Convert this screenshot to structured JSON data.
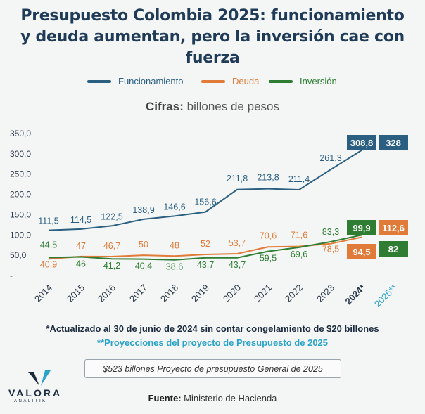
{
  "title_line1": "Presupuesto Colombia 2025: funcionamiento",
  "title_line2": "y deuda aumentan, pero la inversión cae con fuerza",
  "subtitle_bold": "Cifras:",
  "subtitle_rest": "billones de pesos",
  "notes": {
    "note1": "*Actualizado al 30 de junio de 2024 sin contar congelamiento de $20 billones",
    "note2": "**Proyecciones del proyecto de Presupuesto de 2025",
    "box": "$523 billones Proyecto de presupuesto General de 2025",
    "source_bold": "Fuente:",
    "source_rest": "Ministerio de Hacienda"
  },
  "logo": {
    "name": "VALORA",
    "sub": "ANALITIK"
  },
  "colors": {
    "funcionamiento": "#2a5f82",
    "deuda": "#e07b39",
    "inversion": "#2e7d32",
    "axis_text": "#2b3a4a",
    "proj": "#2aa3c9"
  },
  "chart_data": {
    "type": "line",
    "title": "Presupuesto Colombia 2025: funcionamiento y deuda aumentan, pero la inversión cae con fuerza",
    "ylabel": "billones de pesos",
    "ylim": [
      0,
      350
    ],
    "yticks": [
      "350,0",
      "300,0",
      "250,0",
      "200,0",
      "150,0",
      "100,0",
      "50,0",
      "-"
    ],
    "ytick_values": [
      350,
      300,
      250,
      200,
      150,
      100,
      50,
      0
    ],
    "categories": [
      "2014",
      "2015",
      "2016",
      "2017",
      "2018",
      "2019",
      "2020",
      "2021",
      "2022",
      "2023",
      "2024*",
      "2025**"
    ],
    "series": [
      {
        "name": "Funcionamiento",
        "values": [
          111.5,
          114.5,
          122.5,
          138.9,
          146.6,
          156.6,
          211.8,
          213.8,
          211.4,
          261.3,
          308.8,
          328
        ],
        "labels": [
          "111,5",
          "114,5",
          "122,5",
          "138,9",
          "146,6",
          "156,6",
          "211,8",
          "213,8",
          "211,4",
          "261,3",
          "308,8",
          "328"
        ]
      },
      {
        "name": "Deuda",
        "values": [
          40.9,
          47,
          46.7,
          50,
          48,
          52,
          53.7,
          70.6,
          71.6,
          78.5,
          94.5,
          112.6
        ],
        "labels": [
          "40,9",
          "47",
          "46,7",
          "50",
          "48",
          "52",
          "53,7",
          "70,6",
          "71,6",
          "78,5",
          "94,5",
          "112,6"
        ]
      },
      {
        "name": "Inversión",
        "values": [
          44.5,
          46,
          41.2,
          40.4,
          38.6,
          43.7,
          43.7,
          59.5,
          69.6,
          83.3,
          99.9,
          82
        ],
        "labels": [
          "44,5",
          "46",
          "41,2",
          "40,4",
          "38,6",
          "43,7",
          "43,7",
          "59,5",
          "69,6",
          "83,3",
          "99,9",
          "82"
        ]
      }
    ]
  }
}
